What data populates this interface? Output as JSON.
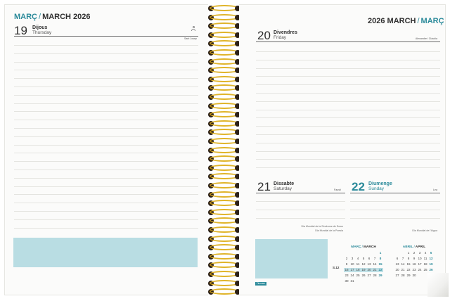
{
  "left_page": {
    "header": {
      "ca": "MARÇ",
      "sep": "/",
      "en": "MARCH 2026"
    },
    "day": {
      "number": "19",
      "ca": "Dijous",
      "en": "Thursday",
      "saint": "Sant Josep"
    }
  },
  "right_page": {
    "header": {
      "year": "2026 MARCH",
      "sep": "/",
      "ca": "MARÇ"
    },
    "day20": {
      "number": "20",
      "ca": "Divendres",
      "en": "Friday",
      "saint": "Alexandre i Clàudia"
    },
    "day21": {
      "number": "21",
      "ca": "Dissabte",
      "en": "Saturday",
      "saint": "Faustí",
      "event1": "Dia Mundial de la Síndrome de Down",
      "event2": "Dia Mundial de la Poesia"
    },
    "day22": {
      "number": "22",
      "ca": "Diumenge",
      "en": "Sunday",
      "saint": "Lea",
      "event1": "Dia Mundial de l'Aigua"
    },
    "week_label": "S.12",
    "logo_text": "Finocam",
    "mini_march": {
      "title_ca": "MARÇ",
      "sep": "/",
      "title_en": "MARCH",
      "rows": [
        [
          "",
          "",
          "",
          "",
          "",
          "",
          "1"
        ],
        [
          "2",
          "3",
          "4",
          "5",
          "6",
          "7",
          "8"
        ],
        [
          "9",
          "10",
          "11",
          "12",
          "13",
          "14",
          "15"
        ],
        [
          "16",
          "17",
          "18",
          "19",
          "20",
          "21",
          "22"
        ],
        [
          "23",
          "24",
          "25",
          "26",
          "27",
          "28",
          "29"
        ],
        [
          "30",
          "31",
          "",
          "",
          "",
          "",
          ""
        ]
      ]
    },
    "mini_april": {
      "title_ca": "ABRIL",
      "sep": "/",
      "title_en": "APRIL",
      "rows": [
        [
          "",
          "",
          "1",
          "2",
          "3",
          "4",
          "5"
        ],
        [
          "6",
          "7",
          "8",
          "9",
          "10",
          "11",
          "12"
        ],
        [
          "13",
          "14",
          "15",
          "16",
          "17",
          "18",
          "19"
        ],
        [
          "20",
          "21",
          "22",
          "23",
          "24",
          "25",
          "26"
        ],
        [
          "27",
          "28",
          "29",
          "30",
          "",
          "",
          ""
        ]
      ]
    }
  },
  "colors": {
    "accent": "#2b8a9a",
    "box": "#b9dde3",
    "spiral": "#e0b42a",
    "paper": "#fbfbfa"
  }
}
